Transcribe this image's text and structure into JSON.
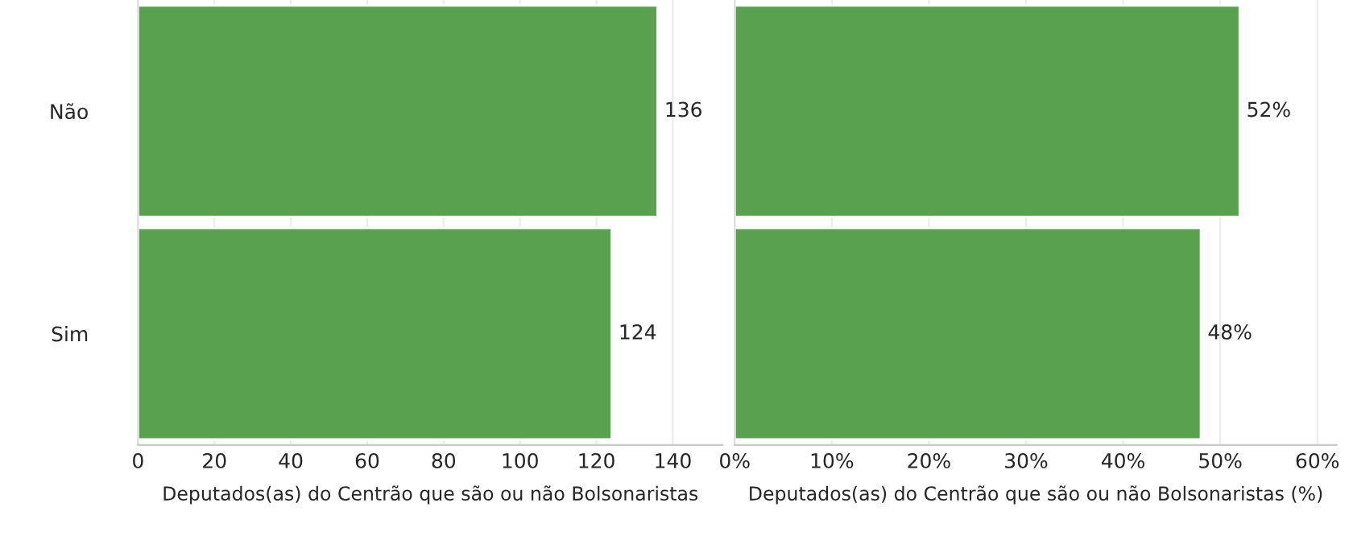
{
  "chart_data": [
    {
      "type": "bar",
      "orientation": "horizontal",
      "categories": [
        "Não",
        "Sim"
      ],
      "series": [
        {
          "color": "#59a14f",
          "values": [
            136,
            124
          ]
        }
      ],
      "data_labels": true,
      "xlabel": "Deputados(as) do Centrão que são ou não Bolsonaristas",
      "xlim": [
        0,
        153
      ],
      "xticks": [
        0,
        20,
        40,
        60,
        80,
        100,
        120,
        140
      ],
      "grid": "x"
    },
    {
      "type": "bar",
      "orientation": "horizontal",
      "categories": [
        null,
        null
      ],
      "series": [
        {
          "color": "#59a14f",
          "values": [
            52,
            48
          ]
        }
      ],
      "value_labels": [
        "52%",
        "48%"
      ],
      "xlabel": "Deputados(as) do Centrão que são ou não Bolsonaristas (%)",
      "xlim": [
        0,
        62
      ],
      "xticks": [
        {
          "value": 0,
          "label": "0%"
        },
        {
          "value": 10,
          "label": "10%"
        },
        {
          "value": 20,
          "label": "20%"
        },
        {
          "value": 30,
          "label": "30%"
        },
        {
          "value": 40,
          "label": "40%"
        },
        {
          "value": 50,
          "label": "50%"
        },
        {
          "value": 60,
          "label": "60%"
        }
      ],
      "grid": "x",
      "tick_labels": "x"
    }
  ]
}
